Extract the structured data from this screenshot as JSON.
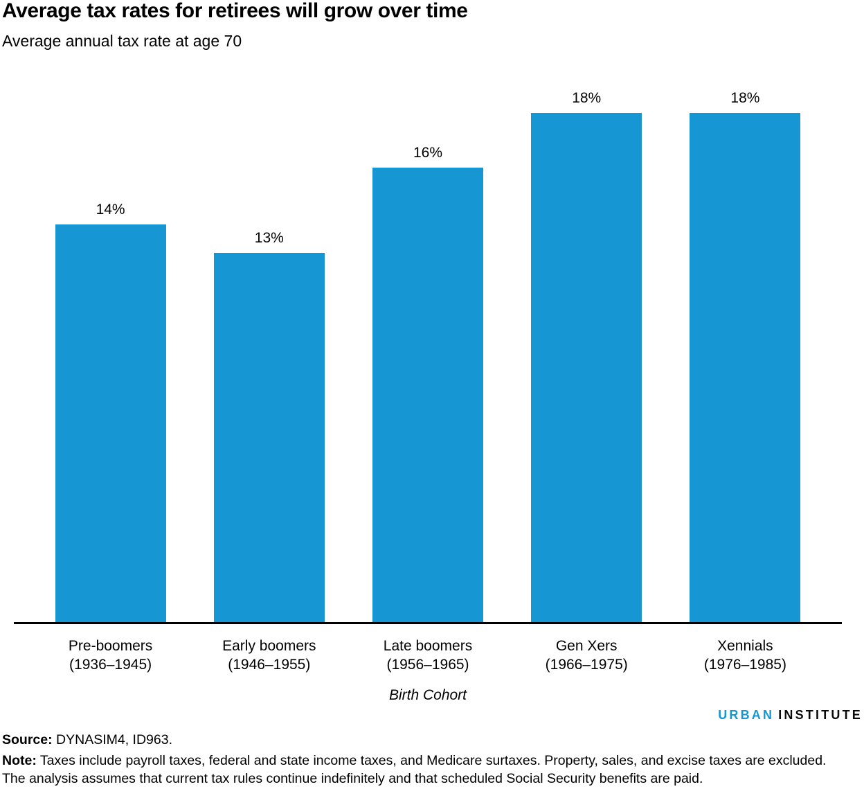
{
  "header": {
    "title": "Average tax rates for retirees will grow over time",
    "subtitle": "Average annual tax rate at age 70"
  },
  "chart_data": {
    "type": "bar",
    "title": "Average tax rates for retirees will grow over time",
    "subtitle": "Average annual tax rate at age 70",
    "xlabel": "Birth Cohort",
    "ylabel": "Average annual tax rate at age 70",
    "ylim": [
      0,
      18
    ],
    "grid": false,
    "legend": "none",
    "bar_color": "#1696d2",
    "categories": [
      "Pre-boomers (1936–1945)",
      "Early boomers (1946–1955)",
      "Late boomers (1956–1965)",
      "Gen Xers (1966–1975)",
      "Xennials (1976–1985)"
    ],
    "values": [
      14,
      13,
      16,
      18,
      18
    ],
    "value_labels": [
      "14%",
      "13%",
      "16%",
      "18%",
      "18%"
    ],
    "bars": [
      {
        "name": "Pre-boomers",
        "years": "(1936–1945)",
        "value": 14,
        "label": "14%"
      },
      {
        "name": "Early boomers",
        "years": "(1946–1955)",
        "value": 13,
        "label": "13%"
      },
      {
        "name": "Late boomers",
        "years": "(1956–1965)",
        "value": 16,
        "label": "16%"
      },
      {
        "name": "Gen Xers",
        "years": "(1966–1975)",
        "value": 18,
        "label": "18%"
      },
      {
        "name": "Xennials",
        "years": "(1976–1985)",
        "value": 18,
        "label": "18%"
      }
    ]
  },
  "footer": {
    "logo": {
      "urban": "URBAN",
      "institute": "INSTITUTE"
    },
    "source_label": "Source:",
    "source_text": " DYNASIM4, ID963.",
    "note_label": "Note:",
    "note_text": " Taxes include payroll taxes, federal and state income taxes, and Medicare surtaxes. Property, sales, and excise taxes are excluded. The analysis assumes that current tax rules continue indefinitely and that scheduled Social Security benefits are paid."
  },
  "colors": {
    "accent_blue": "#1696d2",
    "text": "#000000",
    "axis": "#000000",
    "logo_urban": "#1696d2",
    "logo_institute": "#0a0a0a"
  }
}
